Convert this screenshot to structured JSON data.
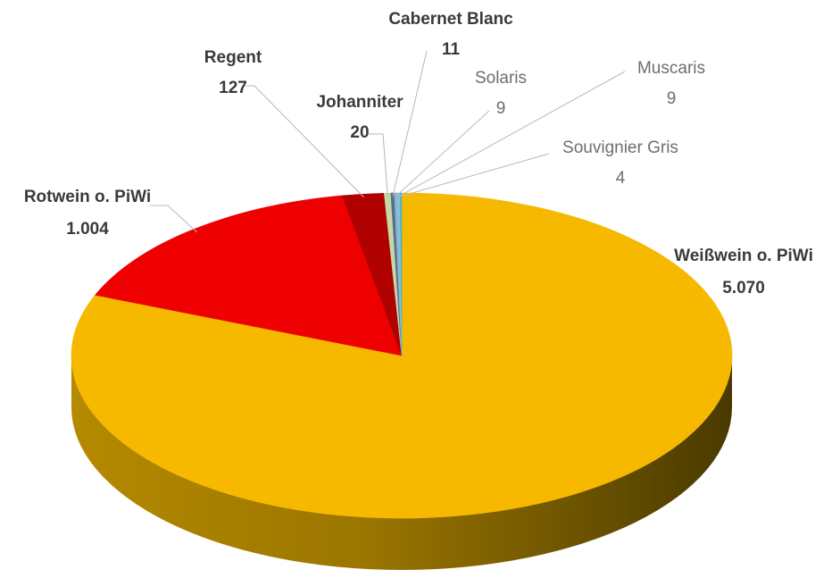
{
  "chart_data": {
    "type": "pie",
    "title": "",
    "series": [
      {
        "name": "",
        "slices": [
          {
            "label": "Weißwein o. PiWi",
            "value_label": "5.070",
            "value": 5070,
            "color": "#f7b800"
          },
          {
            "label": "Rotwein o. PiWi",
            "value_label": "1.004",
            "value": 1004,
            "color": "#ee0000"
          },
          {
            "label": "Regent",
            "value_label": "127",
            "value": 127,
            "color": "#b00000"
          },
          {
            "label": "Johanniter",
            "value_label": "20",
            "value": 20,
            "color": "#c6d9a4"
          },
          {
            "label": "Cabernet Blanc",
            "value_label": "11",
            "value": 11,
            "color": "#5b6f8f"
          },
          {
            "label": "Solaris",
            "value_label": "9",
            "value": 9,
            "color": "#8fb4d6"
          },
          {
            "label": "Muscaris",
            "value_label": "9",
            "value": 9,
            "color": "#7fc6cf"
          },
          {
            "label": "Souvignier Gris",
            "value_label": "4",
            "value": 4,
            "color": "#4ab0c8"
          }
        ]
      }
    ],
    "style": "3d-pie",
    "legend": "none",
    "data_labels": "category-and-value-outside-with-leader-lines"
  }
}
